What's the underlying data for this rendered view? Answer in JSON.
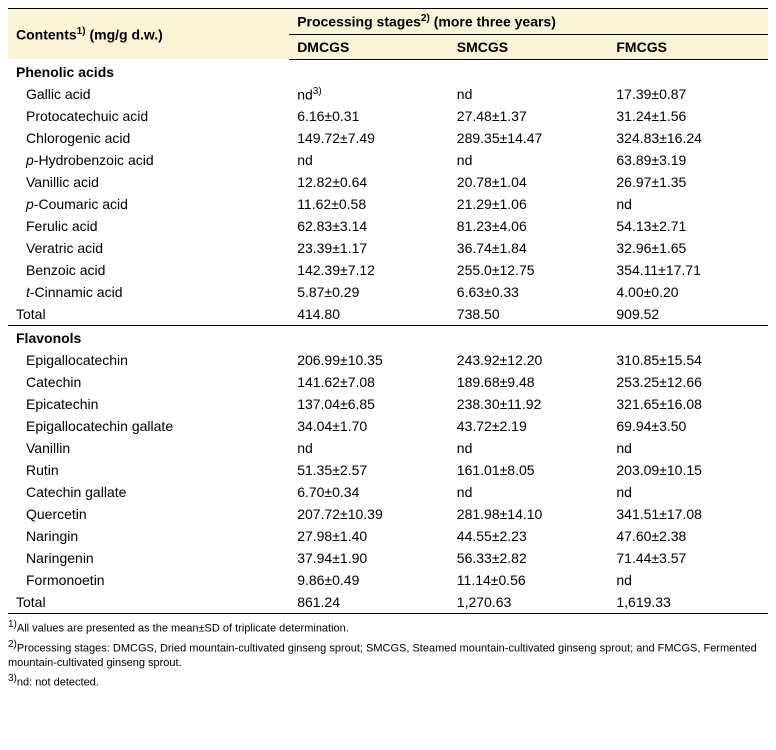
{
  "header": {
    "contents_label_pre": "Contents",
    "contents_sup": "1)",
    "contents_label_post": " (mg/g d.w.)",
    "stages_label_pre": "Processing stages",
    "stages_sup": "2)",
    "stages_label_post": " (more three years)",
    "col1": "DMCGS",
    "col2": "SMCGS",
    "col3": "FMCGS"
  },
  "sections": [
    {
      "title": "Phenolic acids",
      "rows": [
        {
          "label": "Gallic acid",
          "v1": "nd",
          "v1_sup": "3)",
          "v2": "nd",
          "v3": "17.39±0.87"
        },
        {
          "label": "Protocatechuic acid",
          "v1": "6.16±0.31",
          "v2": "27.48±1.37",
          "v3": "31.24±1.56"
        },
        {
          "label": "Chlorogenic acid",
          "v1": "149.72±7.49",
          "v2": "289.35±14.47",
          "v3": "324.83±16.24"
        },
        {
          "label_html": true,
          "label_pre": "p",
          "label_post": "-Hydrobenzoic acid",
          "v1": "nd",
          "v2": "nd",
          "v3": "63.89±3.19"
        },
        {
          "label": "Vanillic acid",
          "v1": "12.82±0.64",
          "v2": "20.78±1.04",
          "v3": "26.97±1.35"
        },
        {
          "label_html": true,
          "label_pre": "p",
          "label_post": "-Coumaric acid",
          "v1": "11.62±0.58",
          "v2": "21.29±1.06",
          "v3": "nd"
        },
        {
          "label": "Ferulic acid",
          "v1": "62.83±3.14",
          "v2": "81.23±4.06",
          "v3": "54.13±2.71"
        },
        {
          "label": "Veratric acid",
          "v1": "23.39±1.17",
          "v2": "36.74±1.84",
          "v3": "32.96±1.65"
        },
        {
          "label": "Benzoic acid",
          "v1": "142.39±7.12",
          "v2": "255.0±12.75",
          "v3": "354.11±17.71"
        },
        {
          "label_html": true,
          "label_pre": "t",
          "label_post": "-Cinnamic acid",
          "v1": "5.87±0.29",
          "v2": "6.63±0.33",
          "v3": "4.00±0.20"
        }
      ],
      "total": {
        "label": "Total",
        "v1": "414.80",
        "v2": "738.50",
        "v3": "909.52"
      }
    },
    {
      "title": "Flavonols",
      "last": true,
      "rows": [
        {
          "label": "Epigallocatechin",
          "v1": "206.99±10.35",
          "v2": "243.92±12.20",
          "v3": "310.85±15.54"
        },
        {
          "label": "Catechin",
          "v1": "141.62±7.08",
          "v2": "189.68±9.48",
          "v3": "253.25±12.66"
        },
        {
          "label": "Epicatechin",
          "v1": "137.04±6.85",
          "v2": "238.30±11.92",
          "v3": "321.65±16.08"
        },
        {
          "label": "Epigallocatechin gallate",
          "v1": "34.04±1.70",
          "v2": "43.72±2.19",
          "v3": "69.94±3.50"
        },
        {
          "label": "Vanillin",
          "v1": "nd",
          "v2": "nd",
          "v3": "nd"
        },
        {
          "label": "Rutin",
          "v1": "51.35±2.57",
          "v2": "161.01±8.05",
          "v3": "203.09±10.15"
        },
        {
          "label": "Catechin gallate",
          "v1": "6.70±0.34",
          "v2": "nd",
          "v3": "nd"
        },
        {
          "label": "Quercetin",
          "v1": "207.72±10.39",
          "v2": "281.98±14.10",
          "v3": "341.51±17.08"
        },
        {
          "label": "Naringin",
          "v1": "27.98±1.40",
          "v2": "44.55±2.23",
          "v3": "47.60±2.38"
        },
        {
          "label": "Naringenin",
          "v1": "37.94±1.90",
          "v2": "56.33±2.82",
          "v3": "71.44±3.57"
        },
        {
          "label": "Formonoetin",
          "v1": "9.86±0.49",
          "v2": "11.14±0.56",
          "v3": "nd"
        }
      ],
      "total": {
        "label": "Total",
        "v1": "861.24",
        "v2": "1,270.63",
        "v3": "1,619.33"
      }
    }
  ],
  "footnotes": {
    "f1_sup": "1)",
    "f1": "All values are presented as the mean±SD of triplicate determination.",
    "f2_sup": "2)",
    "f2": "Processing stages: DMCGS, Dried mountain-cultivated ginseng sprout; SMCGS, Steamed mountain-cultivated ginseng sprout; and FMCGS, Fermented mountain-cultivated ginseng sprout.",
    "f3_sup": "3)",
    "f3": "nd: not detected."
  }
}
